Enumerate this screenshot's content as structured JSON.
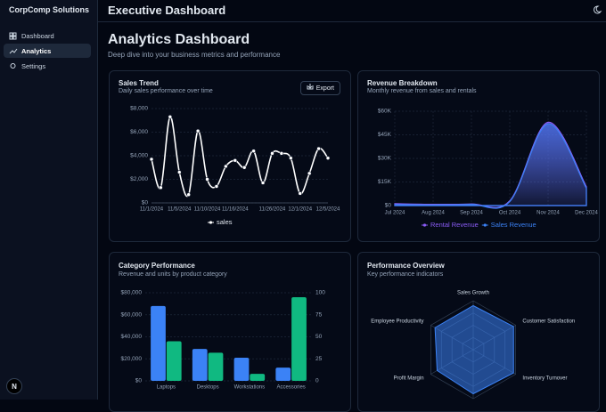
{
  "sidebar": {
    "brand": "CorpComp Solutions",
    "nav": [
      "Dashboard",
      "Analytics",
      "Settings"
    ],
    "avatar": "N"
  },
  "header": {
    "title": "Executive Dashboard"
  },
  "page": {
    "title": "Analytics Dashboard",
    "subtitle": "Deep dive into your business metrics and performance"
  },
  "actions": {
    "export": "Export"
  },
  "chart_data": [
    {
      "type": "line",
      "title": "Sales Trend",
      "subtitle": "Daily sales performance over time",
      "categories": [
        "11/1/2024",
        null,
        null,
        "11/5/2024",
        null,
        null,
        "11/10/2024",
        null,
        null,
        "11/16/2024",
        null,
        null,
        null,
        "11/26/2024",
        null,
        null,
        "12/1/2024",
        null,
        null,
        "12/5/2024"
      ],
      "series": [
        {
          "name": "sales",
          "color": "#ffffff",
          "values": [
            3700,
            1300,
            7300,
            2600,
            700,
            6100,
            2000,
            1400,
            3100,
            3600,
            3000,
            4400,
            1700,
            4200,
            4200,
            3800,
            800,
            2500,
            4600,
            3800
          ]
        }
      ],
      "ylim": [
        0,
        8000
      ],
      "yticks": [
        {
          "value": 0,
          "label": "$0"
        },
        {
          "value": 2000,
          "label": "$2,000"
        },
        {
          "value": 4000,
          "label": "$4,000"
        },
        {
          "value": 6000,
          "label": "$6,000"
        },
        {
          "value": 8000,
          "label": "$8,000"
        }
      ],
      "grid": true,
      "legend": "bottom"
    },
    {
      "type": "area",
      "title": "Revenue Breakdown",
      "subtitle": "Monthly revenue from sales and rentals",
      "categories": [
        "Jul 2024",
        "Aug 2024",
        "Sep 2024",
        "Oct 2024",
        "Nov 2024",
        "Dec 2024"
      ],
      "series": [
        {
          "name": "Rental Revenue",
          "color": "#8b5cf6",
          "values": [
            1200,
            800,
            1000,
            3000,
            53000,
            12000
          ]
        },
        {
          "name": "Sales Revenue",
          "color": "#3b82f6",
          "values": [
            600,
            400,
            700,
            2500,
            52000,
            11000
          ]
        }
      ],
      "ylim": [
        0,
        60000
      ],
      "yticks": [
        {
          "value": 0,
          "label": "$0"
        },
        {
          "value": 15000,
          "label": "$15K"
        },
        {
          "value": 30000,
          "label": "$30K"
        },
        {
          "value": 45000,
          "label": "$45K"
        },
        {
          "value": 60000,
          "label": "$60K"
        }
      ],
      "grid": true,
      "legend": "bottom"
    },
    {
      "type": "bar",
      "title": "Category Performance",
      "subtitle": "Revenue and units by product category",
      "categories": [
        "Laptops",
        "Desktops",
        "Workstations",
        "Accessories"
      ],
      "series": [
        {
          "color": "#3b82f6",
          "values": [
            68000,
            29000,
            21000,
            12000
          ]
        },
        {
          "color": "#10b981",
          "values": [
            45,
            32,
            8,
            95
          ],
          "axis": "y2"
        }
      ],
      "ylim": [
        0,
        80000
      ],
      "yticks": [
        {
          "value": 0,
          "label": "$0"
        },
        {
          "value": 20000,
          "label": "$20,000"
        },
        {
          "value": 40000,
          "label": "$40,000"
        },
        {
          "value": 60000,
          "label": "$60,000"
        },
        {
          "value": 80000,
          "label": "$80,000"
        }
      ],
      "y2lim": [
        0,
        100
      ],
      "y2ticks": [
        0,
        25,
        50,
        75,
        100
      ],
      "grid": true
    },
    {
      "type": "radar",
      "title": "Performance Overview",
      "subtitle": "Key performance indicators",
      "categories": [
        "Sales Growth",
        "Customer Satisfaction",
        "Inventory Turnover",
        null,
        "Profit Margin",
        "Employee Productivity"
      ],
      "series": [
        {
          "color": "#3b82f6",
          "values": [
            90,
            95,
            95,
            90,
            85,
            90
          ]
        }
      ],
      "rlim": [
        0,
        100
      ]
    }
  ]
}
